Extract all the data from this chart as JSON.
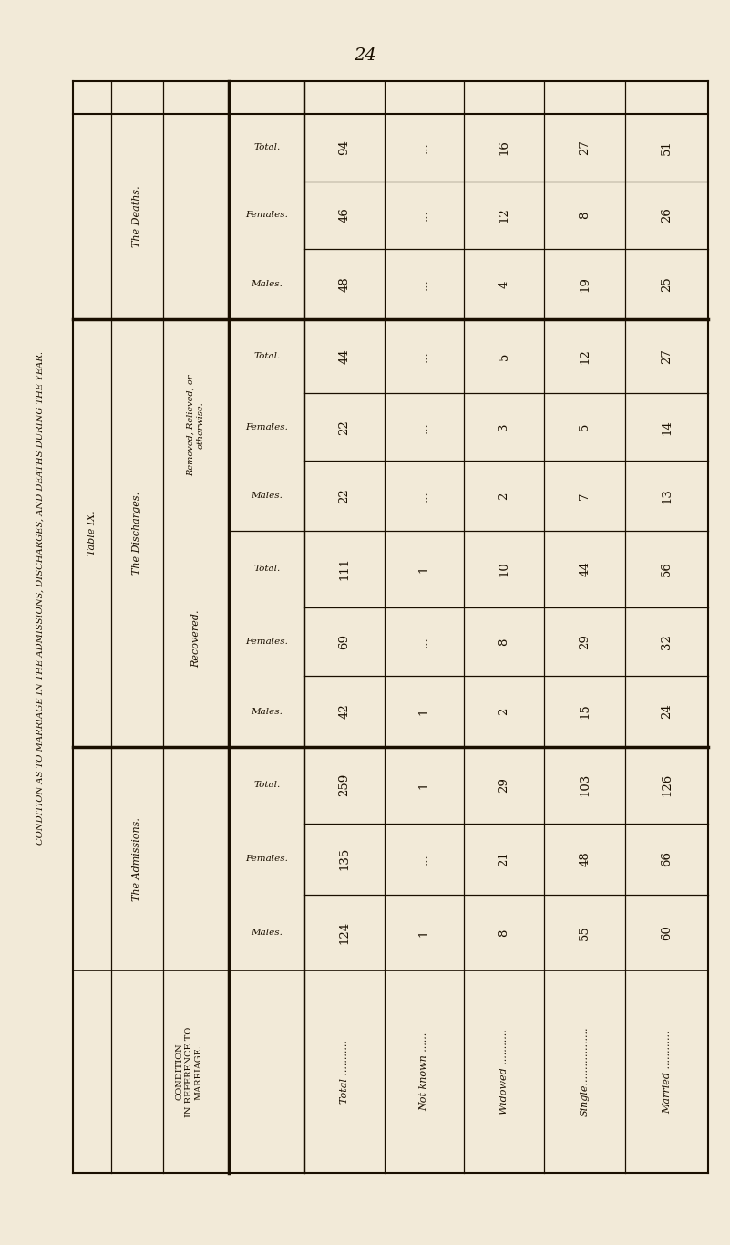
{
  "page_number": "24",
  "side_label": "CONDITION AS TO MARRIAGE IN THE ADMISSIONS, DISCHARGES, AND DEATHS DURING THE YEAR.",
  "table_title_left": "TABLE IX.",
  "col_header_left": "CONDITION\nIN REFERENCE TO\nMARRIAGE.",
  "section_headers": [
    "The Admissions.",
    "The Discharges.",
    "The Deaths."
  ],
  "discharge_subsections": [
    "Recovered.",
    "Removed, Relieved, or\notherwise."
  ],
  "sub_col_headers": [
    "Males.",
    "Females.",
    "Total."
  ],
  "row_labels": [
    "Married ............",
    "Single..................",
    "Widowed ...........",
    "Not known ......",
    "Total ..........."
  ],
  "data": {
    "admissions": {
      "males": [
        60,
        55,
        8,
        1,
        124
      ],
      "females": [
        66,
        48,
        21,
        "...",
        135
      ],
      "total": [
        126,
        103,
        29,
        1,
        259
      ]
    },
    "recovered": {
      "males": [
        24,
        15,
        2,
        1,
        42
      ],
      "females": [
        32,
        29,
        8,
        "...",
        69
      ],
      "total": [
        56,
        44,
        10,
        1,
        111
      ]
    },
    "removed": {
      "males": [
        13,
        7,
        2,
        "...",
        22
      ],
      "females": [
        14,
        5,
        3,
        "...",
        22
      ],
      "total": [
        27,
        12,
        5,
        "...",
        44
      ]
    },
    "deaths": {
      "males": [
        25,
        19,
        4,
        "...",
        48
      ],
      "females": [
        26,
        8,
        12,
        "...",
        46
      ],
      "total": [
        51,
        27,
        16,
        "...",
        94
      ]
    }
  },
  "bg_color": "#f2ead8",
  "text_color": "#1a0f00",
  "line_color": "#1a0f00"
}
